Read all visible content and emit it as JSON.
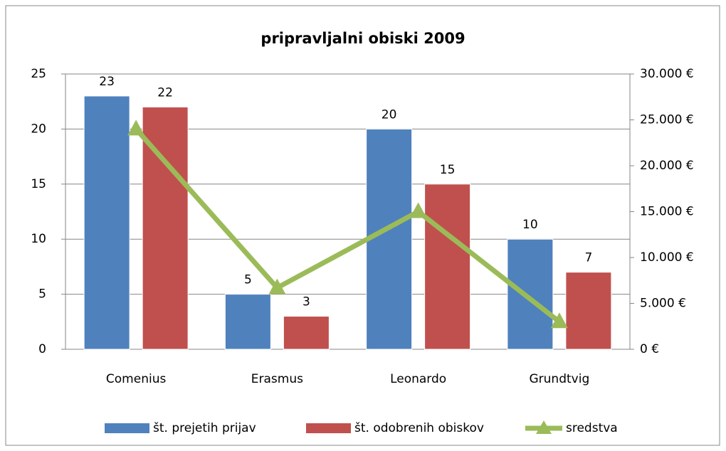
{
  "chart_data": {
    "type": "bar",
    "title": "pripravljalni obiski 2009",
    "categories": [
      "Comenius",
      "Erasmus",
      "Leonardo",
      "Grundtvig"
    ],
    "series": [
      {
        "name": "št. prejetih prijav",
        "color": "#4f81bd",
        "values": [
          23,
          5,
          20,
          10
        ]
      },
      {
        "name": "št. odobrenih obiskov",
        "color": "#c0504d",
        "values": [
          22,
          3,
          15,
          7
        ]
      },
      {
        "name": "sredstva",
        "color": "#9bbb59",
        "type": "line",
        "axis": "y2",
        "values": [
          24000,
          6700,
          15000,
          3000
        ]
      }
    ],
    "ylim": [
      0,
      25
    ],
    "yticks": [
      0,
      5,
      10,
      15,
      20,
      25
    ],
    "y2lim": [
      0,
      30000
    ],
    "y2ticks": [
      {
        "value": 0,
        "label": "0 €"
      },
      {
        "value": 5000,
        "label": "5.000 €"
      },
      {
        "value": 10000,
        "label": "10.000 €"
      },
      {
        "value": 15000,
        "label": "15.000 €"
      },
      {
        "value": 20000,
        "label": "20.000 €"
      },
      {
        "value": 25000,
        "label": "25.000 €"
      },
      {
        "value": 30000,
        "label": "30.000 €"
      }
    ],
    "grid": true,
    "legend": "bottom"
  }
}
